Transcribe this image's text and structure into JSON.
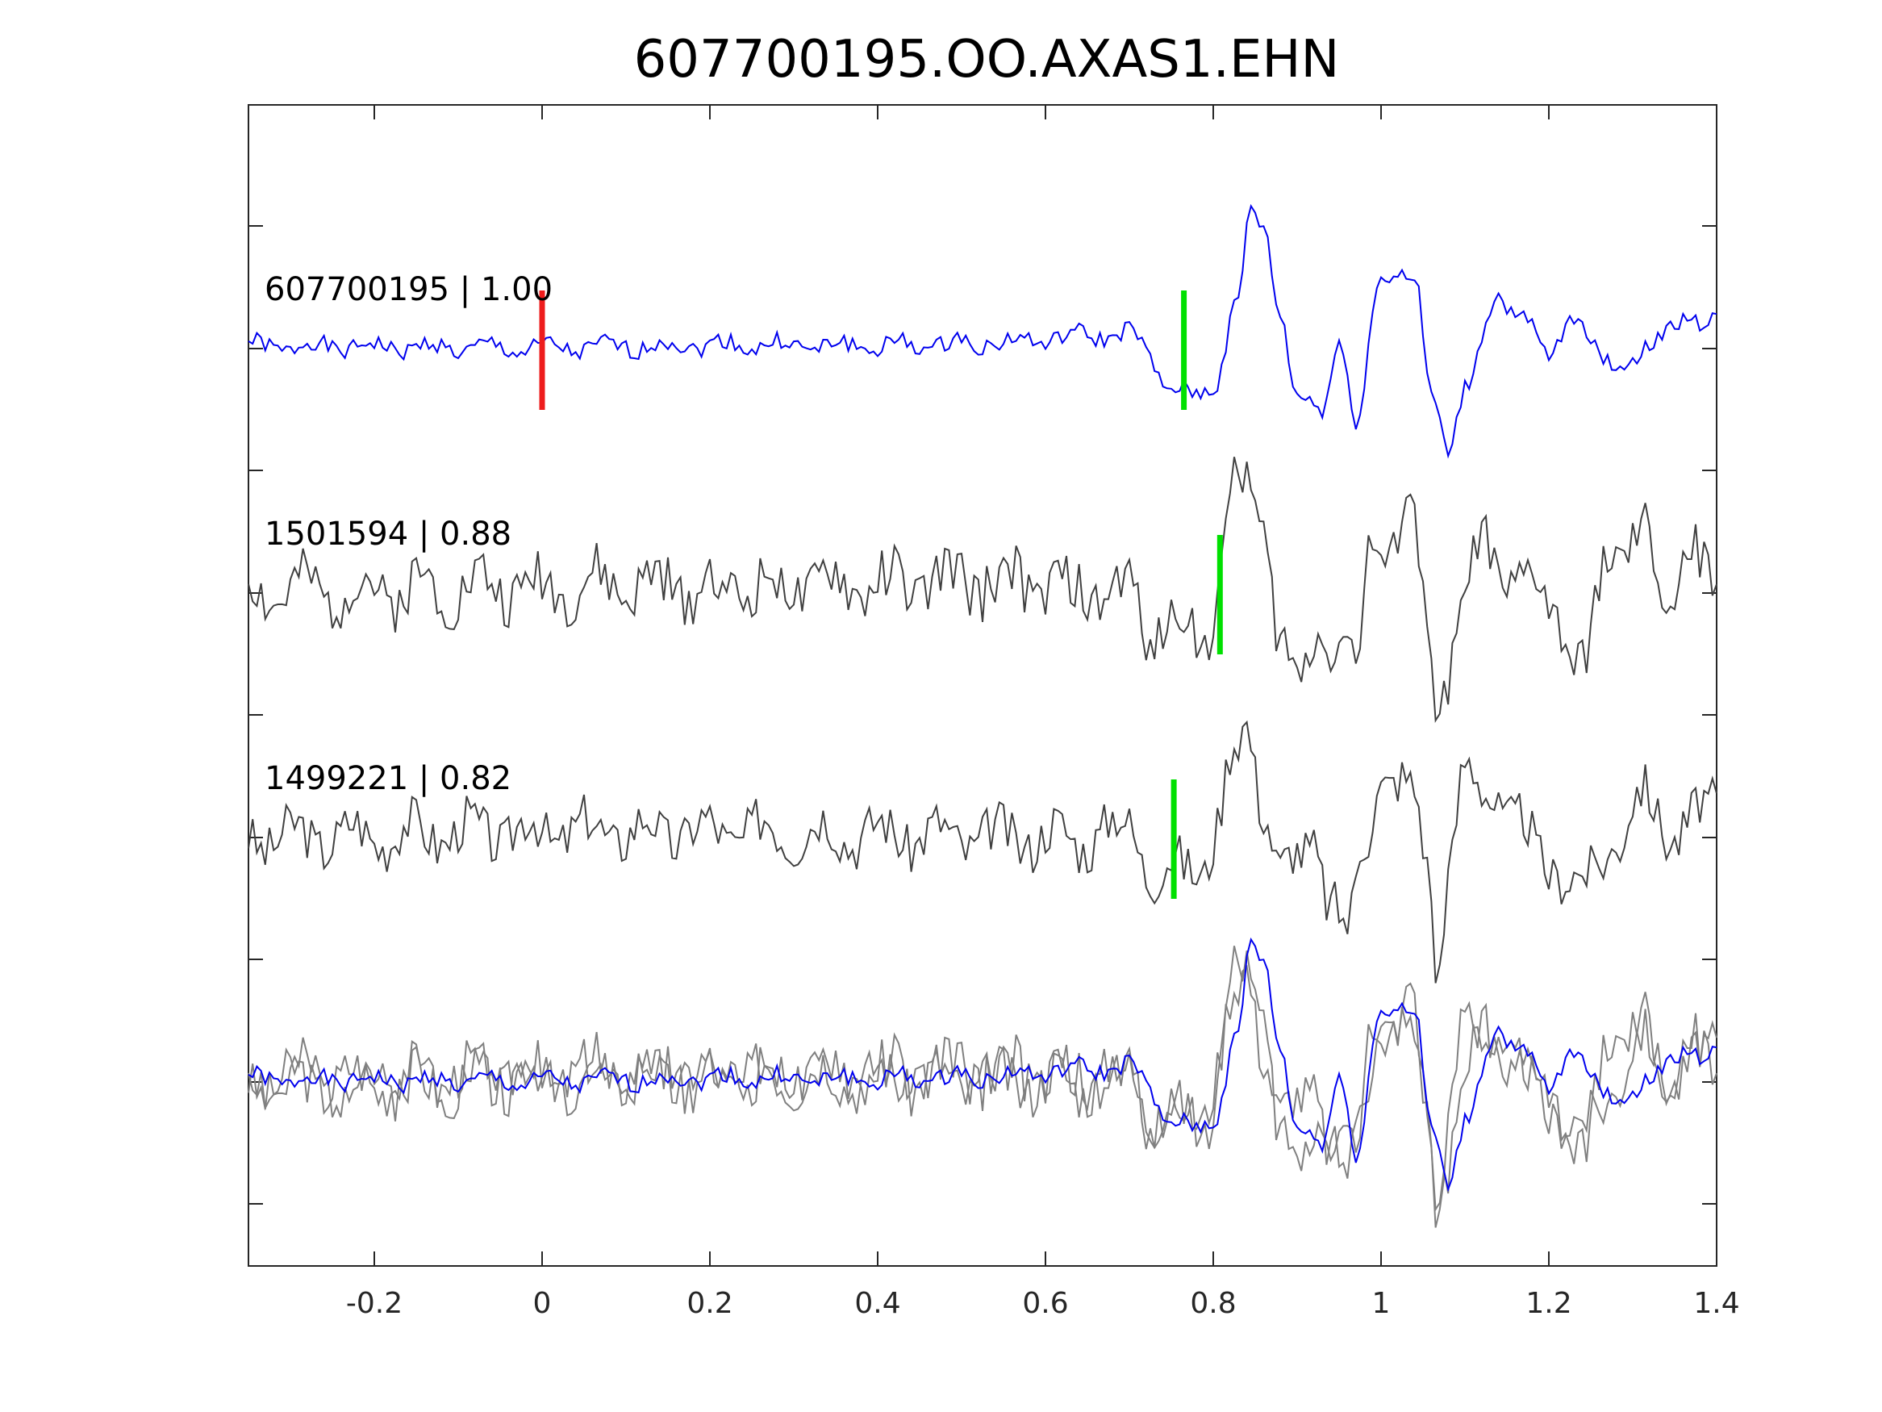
{
  "chart_data": {
    "type": "line",
    "title": "607700195.OO.AXAS1.EHN",
    "xlabel": "",
    "ylabel": "",
    "xlim": [
      -0.35,
      1.4
    ],
    "x_ticks": [
      "-0.2",
      "0",
      "0.2",
      "0.4",
      "0.6",
      "0.8",
      "1",
      "1.2",
      "1.4"
    ],
    "x_tick_values": [
      -0.2,
      0,
      0.2,
      0.4,
      0.6,
      0.8,
      1.0,
      1.2,
      1.4
    ],
    "grid": false,
    "y_tick_labels_shown": false,
    "colors": {
      "template": "#0000ee",
      "neighbor": "#404040",
      "overlay_neighbor": "#808080",
      "origin_pick": "#ee1c1c",
      "phase_pick": "#00e000"
    },
    "origin_pick_time": 0.0,
    "series": [
      {
        "label": "607700195 | 1.00",
        "event_id": "607700195",
        "correlation": "1.00",
        "pick_time": 0.765,
        "color": "#0000ee",
        "seed": 1,
        "anchors": [
          [
            -0.35,
            0.02
          ],
          [
            0.0,
            0.0
          ],
          [
            0.2,
            0.03
          ],
          [
            0.4,
            0.02
          ],
          [
            0.55,
            0.05
          ],
          [
            0.65,
            0.1
          ],
          [
            0.7,
            0.12
          ],
          [
            0.75,
            -0.3
          ],
          [
            0.78,
            -0.4
          ],
          [
            0.8,
            -0.3
          ],
          [
            0.83,
            0.4
          ],
          [
            0.845,
            1.1
          ],
          [
            0.86,
            0.95
          ],
          [
            0.88,
            0.3
          ],
          [
            0.9,
            -0.4
          ],
          [
            0.93,
            -0.5
          ],
          [
            0.95,
            0.1
          ],
          [
            0.97,
            -0.6
          ],
          [
            1.0,
            0.55
          ],
          [
            1.02,
            0.65
          ],
          [
            1.04,
            0.55
          ],
          [
            1.06,
            -0.4
          ],
          [
            1.08,
            -0.8
          ],
          [
            1.1,
            -0.3
          ],
          [
            1.14,
            0.4
          ],
          [
            1.17,
            0.25
          ],
          [
            1.2,
            -0.1
          ],
          [
            1.23,
            0.3
          ],
          [
            1.27,
            -0.15
          ],
          [
            1.32,
            0.0
          ],
          [
            1.36,
            0.25
          ],
          [
            1.4,
            0.2
          ]
        ],
        "noise": 0.07
      },
      {
        "label": "1501594 | 0.88",
        "event_id": "1501594",
        "correlation": "0.88",
        "pick_time": 0.808,
        "color": "#404040",
        "seed": 2,
        "anchors": [
          [
            -0.35,
            0.0
          ],
          [
            0.0,
            0.05
          ],
          [
            0.3,
            0.05
          ],
          [
            0.55,
            0.1
          ],
          [
            0.65,
            0.0
          ],
          [
            0.7,
            0.0
          ],
          [
            0.73,
            -0.3
          ],
          [
            0.76,
            -0.25
          ],
          [
            0.79,
            -0.35
          ],
          [
            0.81,
            0.2
          ],
          [
            0.825,
            0.95
          ],
          [
            0.84,
            0.85
          ],
          [
            0.86,
            0.5
          ],
          [
            0.88,
            -0.3
          ],
          [
            0.9,
            -0.8
          ],
          [
            0.925,
            -0.3
          ],
          [
            0.95,
            -0.3
          ],
          [
            0.97,
            -0.6
          ],
          [
            0.99,
            0.4
          ],
          [
            1.01,
            0.3
          ],
          [
            1.03,
            0.75
          ],
          [
            1.05,
            0.1
          ],
          [
            1.065,
            -1.0
          ],
          [
            1.09,
            -0.3
          ],
          [
            1.12,
            0.4
          ],
          [
            1.15,
            0.1
          ],
          [
            1.18,
            0.05
          ],
          [
            1.21,
            -0.15
          ],
          [
            1.24,
            -0.65
          ],
          [
            1.27,
            0.3
          ],
          [
            1.31,
            0.45
          ],
          [
            1.34,
            -0.1
          ],
          [
            1.37,
            0.4
          ],
          [
            1.4,
            -0.15
          ]
        ],
        "noise": 0.22
      },
      {
        "label": "1499221 | 0.82",
        "event_id": "1499221",
        "correlation": "0.82",
        "pick_time": 0.753,
        "color": "#404040",
        "seed": 3,
        "anchors": [
          [
            -0.35,
            0.0
          ],
          [
            0.0,
            0.05
          ],
          [
            0.3,
            0.05
          ],
          [
            0.55,
            0.0
          ],
          [
            0.65,
            0.0
          ],
          [
            0.7,
            0.1
          ],
          [
            0.73,
            -0.3
          ],
          [
            0.76,
            -0.25
          ],
          [
            0.79,
            -0.2
          ],
          [
            0.8,
            0.0
          ],
          [
            0.825,
            0.65
          ],
          [
            0.84,
            0.9
          ],
          [
            0.86,
            0.3
          ],
          [
            0.88,
            -0.3
          ],
          [
            0.9,
            -0.2
          ],
          [
            0.92,
            0.0
          ],
          [
            0.94,
            -0.5
          ],
          [
            0.96,
            -0.8
          ],
          [
            0.98,
            0.0
          ],
          [
            1.0,
            0.5
          ],
          [
            1.02,
            0.4
          ],
          [
            1.04,
            0.3
          ],
          [
            1.06,
            -0.3
          ],
          [
            1.065,
            -1.1
          ],
          [
            1.08,
            -0.3
          ],
          [
            1.1,
            0.5
          ],
          [
            1.13,
            0.4
          ],
          [
            1.16,
            0.1
          ],
          [
            1.2,
            -0.2
          ],
          [
            1.24,
            -0.4
          ],
          [
            1.28,
            0.0
          ],
          [
            1.31,
            0.3
          ],
          [
            1.35,
            0.05
          ],
          [
            1.4,
            0.25
          ]
        ],
        "noise": 0.2
      }
    ]
  }
}
